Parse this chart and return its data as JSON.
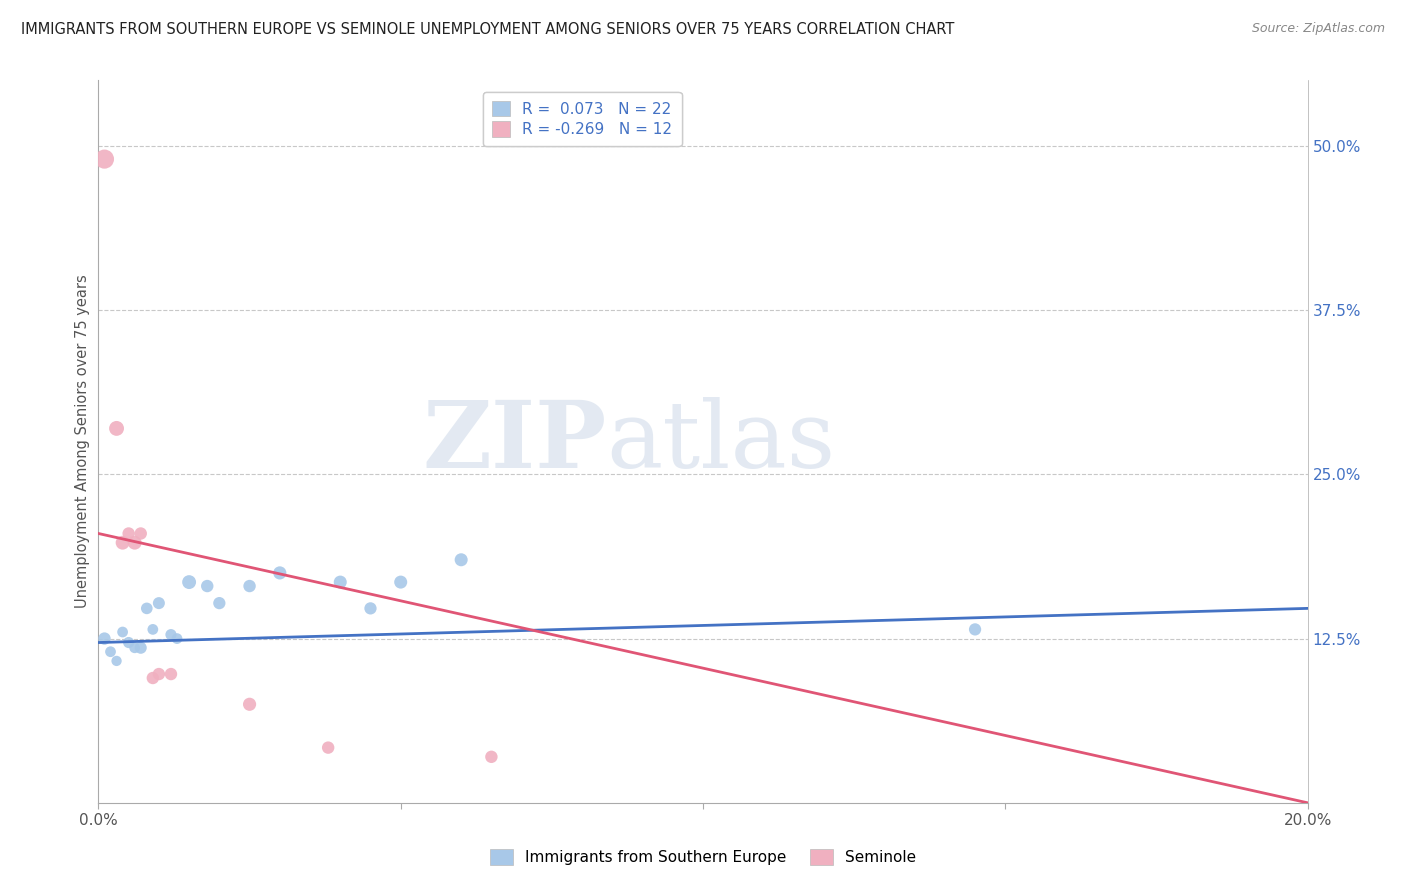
{
  "title": "IMMIGRANTS FROM SOUTHERN EUROPE VS SEMINOLE UNEMPLOYMENT AMONG SENIORS OVER 75 YEARS CORRELATION CHART",
  "source": "Source: ZipAtlas.com",
  "ylabel": "Unemployment Among Seniors over 75 years",
  "xlim": [
    0.0,
    0.2
  ],
  "ylim": [
    0.0,
    0.55
  ],
  "blue_r": 0.073,
  "blue_n": 22,
  "pink_r": -0.269,
  "pink_n": 12,
  "blue_color": "#a8c8e8",
  "pink_color": "#f0b0c0",
  "blue_line_color": "#4472c4",
  "pink_line_color": "#e05575",
  "watermark_zip": "ZIP",
  "watermark_atlas": "atlas",
  "legend_label_blue": "Immigrants from Southern Europe",
  "legend_label_pink": "Seminole",
  "blue_line_y0": 0.122,
  "blue_line_y1": 0.148,
  "pink_line_y0": 0.205,
  "pink_line_y1": 0.0,
  "blue_points": [
    [
      0.001,
      0.125
    ],
    [
      0.002,
      0.115
    ],
    [
      0.003,
      0.108
    ],
    [
      0.004,
      0.13
    ],
    [
      0.005,
      0.122
    ],
    [
      0.006,
      0.118
    ],
    [
      0.007,
      0.118
    ],
    [
      0.008,
      0.148
    ],
    [
      0.009,
      0.132
    ],
    [
      0.01,
      0.152
    ],
    [
      0.012,
      0.128
    ],
    [
      0.013,
      0.125
    ],
    [
      0.015,
      0.168
    ],
    [
      0.018,
      0.165
    ],
    [
      0.02,
      0.152
    ],
    [
      0.025,
      0.165
    ],
    [
      0.03,
      0.175
    ],
    [
      0.04,
      0.168
    ],
    [
      0.045,
      0.148
    ],
    [
      0.05,
      0.168
    ],
    [
      0.06,
      0.185
    ],
    [
      0.145,
      0.132
    ]
  ],
  "blue_sizes": [
    80,
    60,
    55,
    60,
    65,
    60,
    75,
    70,
    60,
    75,
    65,
    60,
    100,
    80,
    78,
    80,
    90,
    88,
    78,
    88,
    88,
    78
  ],
  "pink_points": [
    [
      0.001,
      0.49
    ],
    [
      0.003,
      0.285
    ],
    [
      0.004,
      0.198
    ],
    [
      0.005,
      0.205
    ],
    [
      0.006,
      0.198
    ],
    [
      0.007,
      0.205
    ],
    [
      0.009,
      0.095
    ],
    [
      0.01,
      0.098
    ],
    [
      0.012,
      0.098
    ],
    [
      0.025,
      0.075
    ],
    [
      0.038,
      0.042
    ],
    [
      0.065,
      0.035
    ]
  ],
  "pink_sizes": [
    190,
    115,
    100,
    80,
    100,
    80,
    80,
    80,
    80,
    90,
    80,
    80
  ]
}
